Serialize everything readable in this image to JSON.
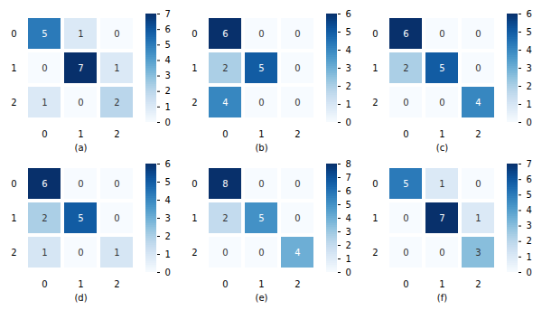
{
  "chart_data": [
    {
      "type": "heatmap",
      "xlabel": "(a)",
      "x": [
        "0",
        "1",
        "2"
      ],
      "y": [
        "0",
        "1",
        "2"
      ],
      "cells": [
        [
          5,
          1,
          0
        ],
        [
          0,
          7,
          1
        ],
        [
          1,
          0,
          2
        ]
      ],
      "color": "Blues",
      "color_range": [
        0,
        7
      ],
      "color_ticks": [
        0,
        1,
        2,
        3,
        4,
        5,
        6,
        7
      ],
      "data_labels": true
    },
    {
      "type": "heatmap",
      "xlabel": "(b)",
      "x": [
        "0",
        "1",
        "2"
      ],
      "y": [
        "0",
        "1",
        "2"
      ],
      "cells": [
        [
          6,
          0,
          0
        ],
        [
          2,
          5,
          0
        ],
        [
          4,
          0,
          0
        ]
      ],
      "color": "Blues",
      "color_range": [
        0,
        6
      ],
      "color_ticks": [
        0,
        1,
        2,
        3,
        4,
        5,
        6
      ],
      "data_labels": true
    },
    {
      "type": "heatmap",
      "xlabel": "(c)",
      "x": [
        "0",
        "1",
        "2"
      ],
      "y": [
        "0",
        "1",
        "2"
      ],
      "cells": [
        [
          6,
          0,
          0
        ],
        [
          2,
          5,
          0
        ],
        [
          0,
          0,
          4
        ]
      ],
      "color": "Blues",
      "color_range": [
        0,
        6
      ],
      "color_ticks": [
        0,
        1,
        2,
        3,
        4,
        5,
        6
      ],
      "data_labels": true
    },
    {
      "type": "heatmap",
      "xlabel": "(d)",
      "x": [
        "0",
        "1",
        "2"
      ],
      "y": [
        "0",
        "1",
        "2"
      ],
      "cells": [
        [
          6,
          0,
          0
        ],
        [
          2,
          5,
          0
        ],
        [
          1,
          0,
          1
        ]
      ],
      "color": "Blues",
      "color_range": [
        0,
        6
      ],
      "color_ticks": [
        0,
        1,
        2,
        3,
        4,
        5,
        6
      ],
      "data_labels": true
    },
    {
      "type": "heatmap",
      "xlabel": "(e)",
      "x": [
        "0",
        "1",
        "2"
      ],
      "y": [
        "0",
        "1",
        "2"
      ],
      "cells": [
        [
          8,
          0,
          0
        ],
        [
          2,
          5,
          0
        ],
        [
          0,
          0,
          4
        ]
      ],
      "color": "Blues",
      "color_range": [
        0,
        8
      ],
      "color_ticks": [
        0,
        1,
        2,
        3,
        4,
        5,
        6,
        7,
        8
      ],
      "data_labels": true
    },
    {
      "type": "heatmap",
      "xlabel": "(f)",
      "x": [
        "0",
        "1",
        "2"
      ],
      "y": [
        "0",
        "1",
        "2"
      ],
      "cells": [
        [
          5,
          1,
          0
        ],
        [
          0,
          7,
          1
        ],
        [
          0,
          0,
          3
        ]
      ],
      "color": "Blues",
      "color_range": [
        0,
        7
      ],
      "color_ticks": [
        0,
        1,
        2,
        3,
        4,
        5,
        6,
        7
      ],
      "data_labels": true
    }
  ]
}
